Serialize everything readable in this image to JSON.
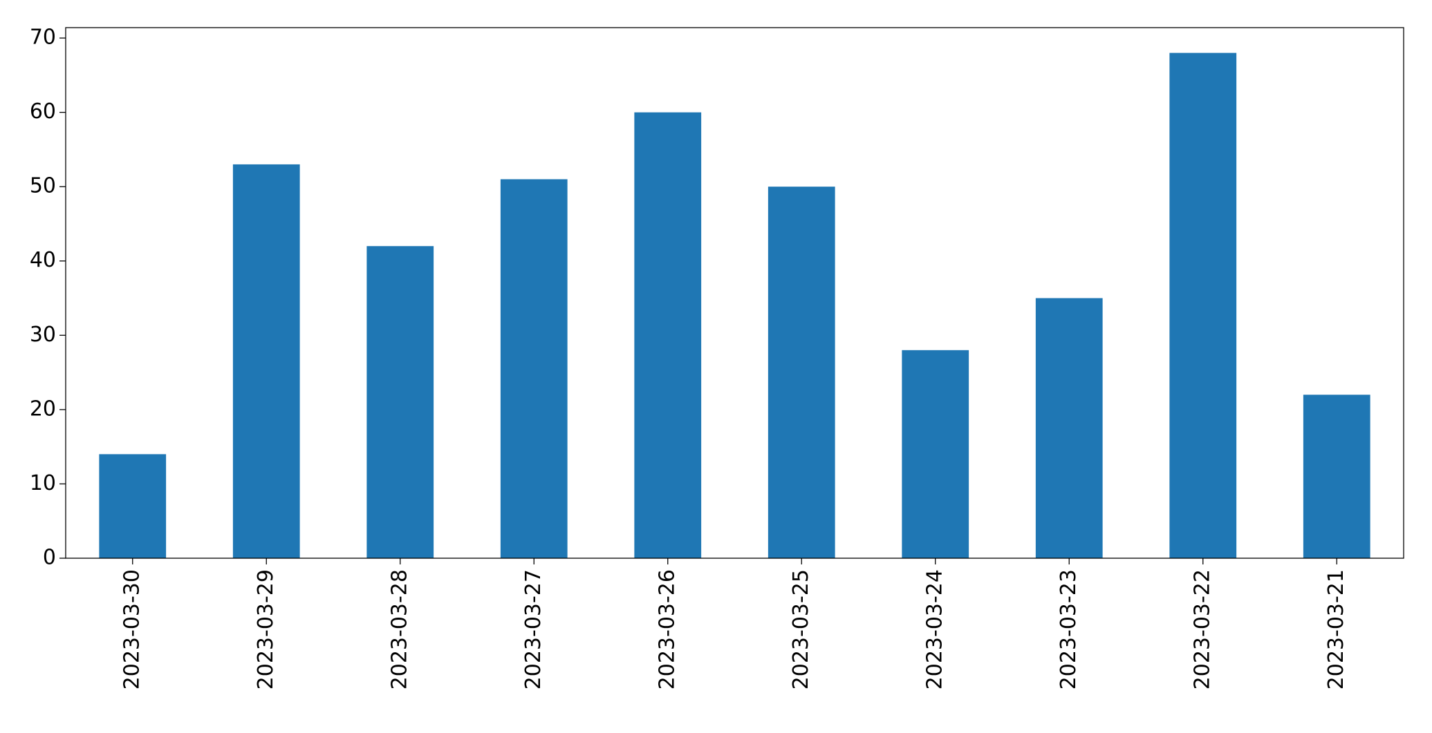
{
  "chart_data": {
    "type": "bar",
    "categories": [
      "2023-03-30",
      "2023-03-29",
      "2023-03-28",
      "2023-03-27",
      "2023-03-26",
      "2023-03-25",
      "2023-03-24",
      "2023-03-23",
      "2023-03-22",
      "2023-03-21"
    ],
    "values": [
      14,
      53,
      42,
      51,
      60,
      50,
      28,
      35,
      68,
      22
    ],
    "color": "#1f77b4",
    "ylim": [
      0,
      71.4
    ],
    "yticks": [
      0,
      10,
      20,
      30,
      40,
      50,
      60,
      70
    ],
    "grid": false
  }
}
